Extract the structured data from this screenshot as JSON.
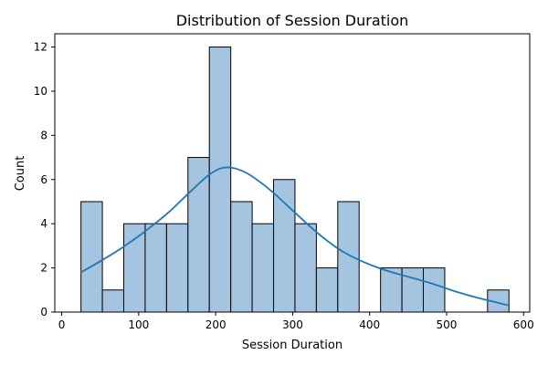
{
  "chart_data": {
    "type": "bar",
    "subtype": "histogram",
    "title": "Distribution of Session Duration",
    "xlabel": "Session Duration",
    "ylabel": "Count",
    "xlim": [
      -9,
      608
    ],
    "ylim": [
      0,
      12.6
    ],
    "x_ticks": [
      0,
      100,
      200,
      300,
      400,
      500,
      600
    ],
    "y_ticks": [
      0,
      2,
      4,
      6,
      8,
      10,
      12
    ],
    "bins": [
      {
        "x0": 25.0,
        "x1": 52.8,
        "count": 5
      },
      {
        "x0": 52.8,
        "x1": 80.6,
        "count": 1
      },
      {
        "x0": 80.6,
        "x1": 108.4,
        "count": 4
      },
      {
        "x0": 108.4,
        "x1": 136.2,
        "count": 4
      },
      {
        "x0": 136.2,
        "x1": 164.0,
        "count": 4
      },
      {
        "x0": 164.0,
        "x1": 191.8,
        "count": 7
      },
      {
        "x0": 191.8,
        "x1": 219.6,
        "count": 12
      },
      {
        "x0": 219.6,
        "x1": 247.4,
        "count": 5
      },
      {
        "x0": 247.4,
        "x1": 275.2,
        "count": 4
      },
      {
        "x0": 275.2,
        "x1": 303.0,
        "count": 6
      },
      {
        "x0": 303.0,
        "x1": 330.8,
        "count": 4
      },
      {
        "x0": 330.8,
        "x1": 358.6,
        "count": 2
      },
      {
        "x0": 358.6,
        "x1": 386.4,
        "count": 5
      },
      {
        "x0": 386.4,
        "x1": 414.2,
        "count": 0
      },
      {
        "x0": 414.2,
        "x1": 442.0,
        "count": 2
      },
      {
        "x0": 442.0,
        "x1": 469.8,
        "count": 2
      },
      {
        "x0": 469.8,
        "x1": 497.6,
        "count": 2
      },
      {
        "x0": 497.6,
        "x1": 525.4,
        "count": 0
      },
      {
        "x0": 525.4,
        "x1": 553.2,
        "count": 0
      },
      {
        "x0": 553.2,
        "x1": 581.0,
        "count": 1
      }
    ],
    "kde": {
      "x": [
        25,
        50,
        80,
        110,
        140,
        170,
        195,
        215,
        240,
        270,
        300,
        330,
        360,
        390,
        420,
        450,
        480,
        510,
        540,
        581
      ],
      "y": [
        1.8,
        2.3,
        2.95,
        3.7,
        4.55,
        5.55,
        6.3,
        6.55,
        6.3,
        5.55,
        4.6,
        3.65,
        2.85,
        2.3,
        1.9,
        1.6,
        1.3,
        0.95,
        0.65,
        0.3
      ]
    },
    "grid": false,
    "legend": "none",
    "colors": {
      "bar_fill": "#a5c4e0",
      "bar_edge": "#000000",
      "kde_line": "#1f77b4"
    }
  }
}
